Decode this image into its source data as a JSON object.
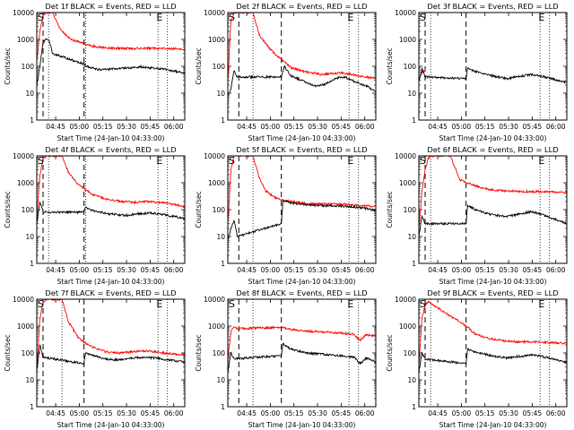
{
  "ylabel": "Counts/sec",
  "xlabel": "Start Time (24-Jan-10 04:33:00)",
  "xticks": [
    "04:45",
    "05:00",
    "05:15",
    "05:30",
    "05:45",
    "06:00"
  ],
  "yticks": [
    "1",
    "10",
    "100",
    "1000",
    "10000"
  ],
  "colors": {
    "events": "#000000",
    "lld": "#ff0000"
  },
  "markers": {
    "start": "S",
    "end": "E"
  },
  "chart_data": [
    {
      "type": "line",
      "title": "Det 1f BLACK = Events, RED = LLD",
      "xlim": [
        0,
        94
      ],
      "ylim": [
        1,
        10000
      ],
      "yscale": "log",
      "vlines": [
        7.5,
        31,
        77,
        83
      ],
      "dashed": [
        4,
        30
      ],
      "end_marker_x": 76,
      "lld": [
        [
          0,
          150
        ],
        [
          2,
          2000
        ],
        [
          4,
          8000
        ],
        [
          6,
          10000
        ],
        [
          10,
          10000
        ],
        [
          14,
          3000
        ],
        [
          18,
          1500
        ],
        [
          22,
          1000
        ],
        [
          26,
          850
        ],
        [
          30,
          700
        ],
        [
          38,
          520
        ],
        [
          46,
          480
        ],
        [
          54,
          470
        ],
        [
          62,
          460
        ],
        [
          70,
          470
        ],
        [
          80,
          460
        ],
        [
          88,
          440
        ],
        [
          94,
          420
        ]
      ],
      "events": [
        [
          0,
          20
        ],
        [
          2,
          100
        ],
        [
          4,
          800
        ],
        [
          6,
          1000
        ],
        [
          8,
          900
        ],
        [
          10,
          300
        ],
        [
          30,
          120
        ],
        [
          31,
          100
        ],
        [
          40,
          75
        ],
        [
          50,
          80
        ],
        [
          60,
          90
        ],
        [
          66,
          95
        ],
        [
          72,
          88
        ],
        [
          80,
          80
        ],
        [
          88,
          65
        ],
        [
          94,
          55
        ]
      ]
    },
    {
      "type": "line",
      "title": "Det 2f BLACK = Events, RED = LLD",
      "xlim": [
        0,
        94
      ],
      "ylim": [
        1,
        10000
      ],
      "yscale": "log",
      "vlines": [
        16,
        77,
        83
      ],
      "dashed": [
        7,
        34
      ],
      "end_marker_x": 76,
      "lld": [
        [
          0,
          30
        ],
        [
          2,
          5000
        ],
        [
          4,
          10000
        ],
        [
          16,
          10000
        ],
        [
          20,
          1500
        ],
        [
          26,
          500
        ],
        [
          32,
          220
        ],
        [
          40,
          90
        ],
        [
          50,
          60
        ],
        [
          60,
          50
        ],
        [
          66,
          55
        ],
        [
          72,
          58
        ],
        [
          80,
          48
        ],
        [
          88,
          40
        ],
        [
          94,
          35
        ]
      ],
      "events": [
        [
          0,
          8
        ],
        [
          2,
          15
        ],
        [
          4,
          70
        ],
        [
          6,
          40
        ],
        [
          34,
          40
        ],
        [
          36,
          100
        ],
        [
          40,
          45
        ],
        [
          50,
          25
        ],
        [
          56,
          18
        ],
        [
          62,
          22
        ],
        [
          68,
          35
        ],
        [
          74,
          40
        ],
        [
          80,
          28
        ],
        [
          88,
          18
        ],
        [
          94,
          12
        ]
      ]
    },
    {
      "type": "line",
      "title": "Det 3f BLACK = Events, RED = LLD",
      "xlim": [
        0,
        94
      ],
      "ylim": [
        1,
        10000
      ],
      "yscale": "log",
      "vlines": [
        7.5,
        77,
        83
      ],
      "dashed": [
        4,
        30
      ],
      "end_marker_x": 76,
      "lld": [
        [
          0,
          30
        ],
        [
          2,
          60
        ],
        [
          4,
          70
        ]
      ],
      "events": [
        [
          0,
          25
        ],
        [
          2,
          80
        ],
        [
          4,
          40
        ],
        [
          30,
          35
        ],
        [
          31,
          80
        ],
        [
          36,
          65
        ],
        [
          46,
          45
        ],
        [
          56,
          35
        ],
        [
          64,
          42
        ],
        [
          72,
          50
        ],
        [
          80,
          40
        ],
        [
          88,
          30
        ],
        [
          94,
          25
        ]
      ]
    },
    {
      "type": "line",
      "title": "Det 4f BLACK = Events, RED = LLD",
      "xlim": [
        0,
        94
      ],
      "ylim": [
        1,
        10000
      ],
      "yscale": "log",
      "vlines": [
        7.5,
        31,
        77,
        83
      ],
      "dashed": [
        4,
        30
      ],
      "end_marker_x": 76,
      "lld": [
        [
          0,
          50
        ],
        [
          2,
          2000
        ],
        [
          4,
          8000
        ],
        [
          6,
          10000
        ],
        [
          16,
          10000
        ],
        [
          20,
          2500
        ],
        [
          26,
          900
        ],
        [
          30,
          600
        ],
        [
          36,
          350
        ],
        [
          44,
          250
        ],
        [
          54,
          200
        ],
        [
          62,
          190
        ],
        [
          70,
          200
        ],
        [
          80,
          180
        ],
        [
          88,
          150
        ],
        [
          94,
          130
        ]
      ],
      "events": [
        [
          0,
          30
        ],
        [
          2,
          200
        ],
        [
          4,
          80
        ],
        [
          30,
          80
        ],
        [
          31,
          120
        ],
        [
          36,
          90
        ],
        [
          46,
          70
        ],
        [
          56,
          60
        ],
        [
          64,
          70
        ],
        [
          72,
          75
        ],
        [
          80,
          65
        ],
        [
          88,
          55
        ],
        [
          94,
          45
        ]
      ]
    },
    {
      "type": "line",
      "title": "Det 5f BLACK = Events, RED = LLD",
      "xlim": [
        0,
        94
      ],
      "ylim": [
        1,
        10000
      ],
      "yscale": "log",
      "vlines": [
        16,
        77,
        83
      ],
      "dashed": [
        7,
        34
      ],
      "end_marker_x": 76,
      "lld": [
        [
          0,
          30
        ],
        [
          2,
          3000
        ],
        [
          4,
          10000
        ],
        [
          16,
          10000
        ],
        [
          20,
          1500
        ],
        [
          24,
          500
        ],
        [
          30,
          280
        ],
        [
          36,
          220
        ],
        [
          46,
          180
        ],
        [
          56,
          160
        ],
        [
          64,
          160
        ],
        [
          72,
          160
        ],
        [
          80,
          150
        ],
        [
          88,
          140
        ],
        [
          94,
          130
        ]
      ],
      "events": [
        [
          0,
          8
        ],
        [
          2,
          20
        ],
        [
          4,
          40
        ],
        [
          6,
          10
        ],
        [
          34,
          30
        ],
        [
          35,
          220
        ],
        [
          40,
          180
        ],
        [
          50,
          150
        ],
        [
          60,
          140
        ],
        [
          68,
          140
        ],
        [
          76,
          130
        ],
        [
          84,
          120
        ],
        [
          94,
          95
        ]
      ]
    },
    {
      "type": "line",
      "title": "Det 6f BLACK = Events, RED = LLD",
      "xlim": [
        0,
        94
      ],
      "ylim": [
        1,
        10000
      ],
      "yscale": "log",
      "vlines": [
        7.5,
        77,
        83
      ],
      "dashed": [
        4,
        30
      ],
      "end_marker_x": 76,
      "lld": [
        [
          0,
          20
        ],
        [
          2,
          500
        ],
        [
          4,
          3000
        ],
        [
          6,
          8000
        ],
        [
          8,
          10000
        ],
        [
          20,
          10000
        ],
        [
          26,
          1300
        ],
        [
          30,
          1000
        ],
        [
          38,
          700
        ],
        [
          46,
          550
        ],
        [
          54,
          500
        ],
        [
          62,
          480
        ],
        [
          70,
          470
        ],
        [
          80,
          460
        ],
        [
          88,
          450
        ],
        [
          94,
          440
        ]
      ],
      "events": [
        [
          0,
          10
        ],
        [
          2,
          60
        ],
        [
          4,
          30
        ],
        [
          30,
          30
        ],
        [
          31,
          140
        ],
        [
          36,
          100
        ],
        [
          46,
          65
        ],
        [
          56,
          55
        ],
        [
          64,
          70
        ],
        [
          72,
          85
        ],
        [
          80,
          60
        ],
        [
          88,
          40
        ],
        [
          94,
          30
        ]
      ]
    },
    {
      "type": "line",
      "title": "Det 7f BLACK = Events, RED = LLD",
      "xlim": [
        0,
        94
      ],
      "ylim": [
        1,
        10000
      ],
      "yscale": "log",
      "vlines": [
        16,
        77,
        83
      ],
      "dashed": [
        4,
        30
      ],
      "end_marker_x": 76,
      "lld": [
        [
          0,
          30
        ],
        [
          2,
          2000
        ],
        [
          4,
          8000
        ],
        [
          6,
          10000
        ],
        [
          16,
          10000
        ],
        [
          20,
          1500
        ],
        [
          26,
          400
        ],
        [
          30,
          250
        ],
        [
          36,
          160
        ],
        [
          44,
          110
        ],
        [
          52,
          100
        ],
        [
          60,
          110
        ],
        [
          68,
          120
        ],
        [
          76,
          110
        ],
        [
          84,
          95
        ],
        [
          94,
          85
        ]
      ],
      "events": [
        [
          0,
          20
        ],
        [
          2,
          200
        ],
        [
          4,
          70
        ],
        [
          30,
          40
        ],
        [
          31,
          100
        ],
        [
          36,
          80
        ],
        [
          44,
          60
        ],
        [
          52,
          55
        ],
        [
          60,
          65
        ],
        [
          68,
          70
        ],
        [
          76,
          65
        ],
        [
          84,
          55
        ],
        [
          94,
          45
        ]
      ]
    },
    {
      "type": "line",
      "title": "Det 8f BLACK = Events, RED = LLD",
      "xlim": [
        0,
        94
      ],
      "ylim": [
        1,
        10000
      ],
      "yscale": "log",
      "vlines": [
        16,
        77,
        83
      ],
      "dashed": [
        7,
        34
      ],
      "end_marker_x": 76,
      "lld": [
        [
          0,
          60
        ],
        [
          2,
          600
        ],
        [
          4,
          1000
        ],
        [
          6,
          800
        ],
        [
          34,
          900
        ],
        [
          40,
          750
        ],
        [
          50,
          650
        ],
        [
          60,
          600
        ],
        [
          70,
          560
        ],
        [
          80,
          500
        ],
        [
          84,
          300
        ],
        [
          88,
          480
        ],
        [
          94,
          420
        ]
      ],
      "events": [
        [
          0,
          20
        ],
        [
          2,
          100
        ],
        [
          4,
          60
        ],
        [
          34,
          80
        ],
        [
          35,
          220
        ],
        [
          40,
          140
        ],
        [
          50,
          100
        ],
        [
          60,
          90
        ],
        [
          70,
          80
        ],
        [
          80,
          70
        ],
        [
          84,
          40
        ],
        [
          88,
          65
        ],
        [
          94,
          45
        ]
      ]
    },
    {
      "type": "line",
      "title": "Det 9f BLACK = Events, RED = LLD",
      "xlim": [
        0,
        94
      ],
      "ylim": [
        1,
        10000
      ],
      "yscale": "log",
      "vlines": [
        7.5,
        77,
        83
      ],
      "dashed": [
        4,
        30
      ],
      "end_marker_x": 76,
      "lld": [
        [
          0,
          40
        ],
        [
          2,
          2000
        ],
        [
          4,
          6000
        ],
        [
          6,
          8000
        ],
        [
          30,
          1000
        ],
        [
          36,
          500
        ],
        [
          44,
          350
        ],
        [
          54,
          280
        ],
        [
          62,
          260
        ],
        [
          70,
          260
        ],
        [
          80,
          250
        ],
        [
          88,
          240
        ],
        [
          94,
          230
        ]
      ],
      "events": [
        [
          0,
          20
        ],
        [
          2,
          100
        ],
        [
          4,
          60
        ],
        [
          30,
          40
        ],
        [
          31,
          140
        ],
        [
          36,
          110
        ],
        [
          46,
          80
        ],
        [
          56,
          65
        ],
        [
          64,
          75
        ],
        [
          72,
          85
        ],
        [
          80,
          70
        ],
        [
          88,
          55
        ],
        [
          94,
          45
        ]
      ]
    }
  ]
}
